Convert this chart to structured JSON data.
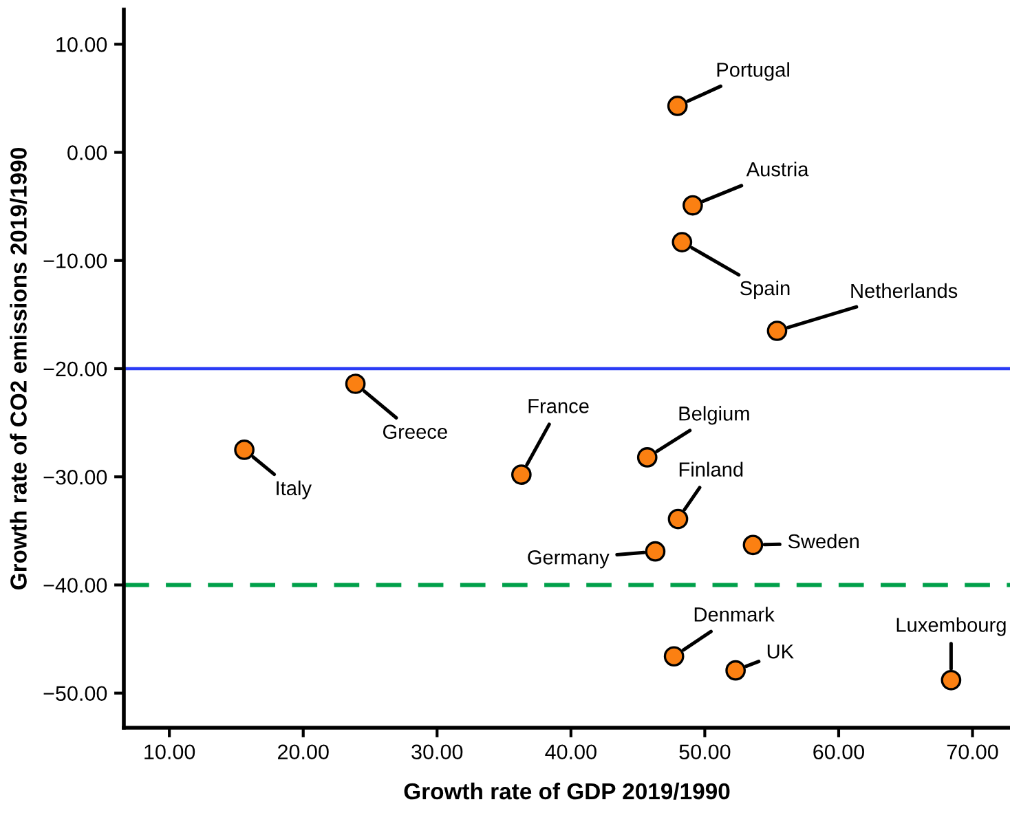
{
  "chart_data": {
    "type": "scatter",
    "xlabel": "Growth rate of GDP 2019/1990",
    "ylabel": "Growth rate of CO2 emissions 2019/1990",
    "series": [
      {
        "color": "#fb8012",
        "x": [
          47.96,
          49.1,
          48.3,
          55.4,
          23.9,
          15.6,
          36.3,
          45.7,
          48.0,
          46.3,
          53.6,
          47.7,
          52.3,
          68.4
        ],
        "values": [
          4.3,
          -4.9,
          -8.3,
          -16.5,
          -21.4,
          -27.5,
          -29.8,
          -28.2,
          -33.9,
          -36.9,
          -36.3,
          -46.6,
          -47.9,
          -48.8
        ]
      }
    ],
    "marker": "circle",
    "annotations": [
      {
        "text": "Portugal",
        "x": 47.96,
        "y": 4.3
      },
      {
        "text": "Austria",
        "x": 49.1,
        "y": -4.9
      },
      {
        "text": "Spain",
        "x": 48.3,
        "y": -8.3
      },
      {
        "text": "Netherlands",
        "x": 55.4,
        "y": -16.5
      },
      {
        "text": "Greece",
        "x": 23.9,
        "y": -21.4
      },
      {
        "text": "Italy",
        "x": 15.6,
        "y": -27.5
      },
      {
        "text": "France",
        "x": 36.3,
        "y": -29.8
      },
      {
        "text": "Belgium",
        "x": 45.7,
        "y": -28.2
      },
      {
        "text": "Finland",
        "x": 48.0,
        "y": -33.9
      },
      {
        "text": "Germany",
        "x": 46.3,
        "y": -36.9
      },
      {
        "text": "Sweden",
        "x": 53.6,
        "y": -36.3
      },
      {
        "text": "Denmark",
        "x": 47.7,
        "y": -46.6
      },
      {
        "text": "UK",
        "x": 52.3,
        "y": -47.9
      },
      {
        "text": "Luxembourg",
        "x": 68.4,
        "y": -48.8
      }
    ],
    "ref_lines": [
      {
        "axis": "y",
        "value": -20,
        "color": "#2b3cf5",
        "line_style": "solid"
      },
      {
        "axis": "y",
        "value": -40,
        "color": "#00a04a",
        "line_style": "dashed"
      }
    ],
    "xlim": [
      6.6,
      72.8
    ],
    "ylim": [
      -53.2,
      13.2
    ],
    "xticks": [
      {
        "value": 10,
        "label": "10.00"
      },
      {
        "value": 20,
        "label": "20.00"
      },
      {
        "value": 30,
        "label": "30.00"
      },
      {
        "value": 40,
        "label": "40.00"
      },
      {
        "value": 50,
        "label": "50.00"
      },
      {
        "value": 60,
        "label": "60.00"
      },
      {
        "value": 70,
        "label": "70.00"
      }
    ],
    "yticks": [
      {
        "value": 10,
        "label": "10.00"
      },
      {
        "value": 0,
        "label": "0.00"
      },
      {
        "value": -10,
        "label": "−10.00"
      },
      {
        "value": -20,
        "label": "−20.00"
      },
      {
        "value": -30,
        "label": "−30.00"
      },
      {
        "value": -40,
        "label": "−40.00"
      },
      {
        "value": -50,
        "label": "−50.00"
      }
    ],
    "grid": false,
    "legend": false
  }
}
